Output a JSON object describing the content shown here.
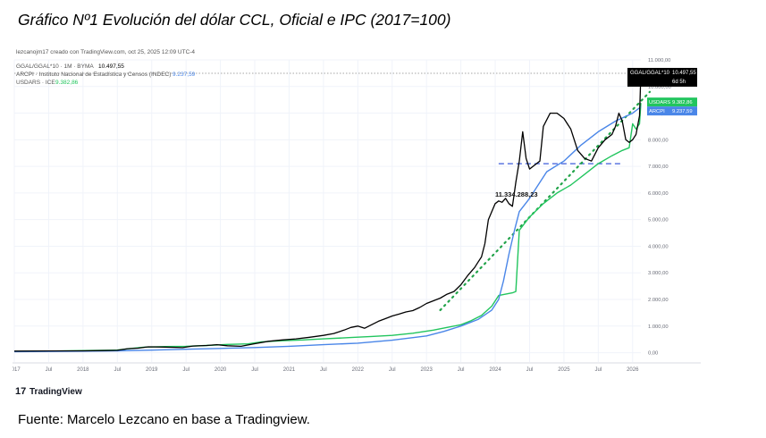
{
  "title": "Gráfico Nº1 Evolución del dólar CCL, Oficial e IPC (2017=100)",
  "caption": "Fuente: Marcelo Lezcano en base a Tradingview.",
  "panel": {
    "author_line": "lezcanojm17 creado con TradingView.com, oct 25, 2025 12:09 UTC-4",
    "brand": "TradingView",
    "brand_mark": "17"
  },
  "legend": [
    {
      "label": "GGAL/GGAL*10 · 1M · BYMA",
      "value": "10.497,55",
      "color": "#000000"
    },
    {
      "label": "ARCPI · Instituto Nacional de Estadística y Censos (INDEC)",
      "value": "9.237,59",
      "color": "#4a86e8"
    },
    {
      "label": "USDARS · ICE",
      "value": "9.382,86",
      "color": "#22c55e"
    }
  ],
  "price_labels": [
    {
      "name": "GGAL/GGAL*10",
      "value": "10.497,55",
      "sub": "6d 5h",
      "color": "#000000"
    },
    {
      "name": "USDARS",
      "value": "9.382,86",
      "color": "#22c55e"
    },
    {
      "name": "ARCPI",
      "value": "9.237,59",
      "color": "#4a86e8"
    }
  ],
  "annotation": "11.334.288,23",
  "chart_data": {
    "type": "line",
    "x_range": [
      2017.0,
      2026.12
    ],
    "ylim": [
      -350,
      11000
    ],
    "y_ticks": [
      0,
      1000,
      2000,
      3000,
      4000,
      5000,
      6000,
      7000,
      8000,
      9000,
      10000,
      11000
    ],
    "y_tick_labels": [
      "0,00",
      "1.000,00",
      "2.000,00",
      "3.000,00",
      "4.000,00",
      "5.000,00",
      "6.000,00",
      "7.000,00",
      "8.000,00",
      "9.000,00",
      "10.000,00",
      "11.000,00"
    ],
    "x_ticks": [
      {
        "x": 2017.0,
        "label": "2017"
      },
      {
        "x": 2017.5,
        "label": "Jul"
      },
      {
        "x": 2018.0,
        "label": "2018"
      },
      {
        "x": 2018.5,
        "label": "Jul"
      },
      {
        "x": 2019.0,
        "label": "2019"
      },
      {
        "x": 2019.5,
        "label": "Jul"
      },
      {
        "x": 2020.0,
        "label": "2020"
      },
      {
        "x": 2020.5,
        "label": "Jul"
      },
      {
        "x": 2021.0,
        "label": "2021"
      },
      {
        "x": 2021.5,
        "label": "Jul"
      },
      {
        "x": 2022.0,
        "label": "2022"
      },
      {
        "x": 2022.5,
        "label": "Jul"
      },
      {
        "x": 2023.0,
        "label": "2023"
      },
      {
        "x": 2023.5,
        "label": "Jul"
      },
      {
        "x": 2024.0,
        "label": "2024"
      },
      {
        "x": 2024.5,
        "label": "Jul"
      },
      {
        "x": 2025.0,
        "label": "2025"
      },
      {
        "x": 2025.5,
        "label": "Jul"
      },
      {
        "x": 2026.0,
        "label": "2026"
      }
    ],
    "series": [
      {
        "name": "GGAL/GGAL*10",
        "color": "#000000",
        "points": [
          [
            2017.0,
            60
          ],
          [
            2017.5,
            65
          ],
          [
            2018.0,
            70
          ],
          [
            2018.3,
            80
          ],
          [
            2018.5,
            90
          ],
          [
            2018.65,
            150
          ],
          [
            2018.8,
            170
          ],
          [
            2018.95,
            220
          ],
          [
            2019.2,
            210
          ],
          [
            2019.45,
            190
          ],
          [
            2019.6,
            250
          ],
          [
            2019.8,
            270
          ],
          [
            2019.95,
            300
          ],
          [
            2020.1,
            260
          ],
          [
            2020.3,
            240
          ],
          [
            2020.5,
            340
          ],
          [
            2020.7,
            430
          ],
          [
            2020.9,
            480
          ],
          [
            2021.1,
            520
          ],
          [
            2021.3,
            580
          ],
          [
            2021.5,
            650
          ],
          [
            2021.65,
            720
          ],
          [
            2021.8,
            850
          ],
          [
            2021.9,
            950
          ],
          [
            2022.0,
            1000
          ],
          [
            2022.1,
            920
          ],
          [
            2022.2,
            1050
          ],
          [
            2022.3,
            1180
          ],
          [
            2022.4,
            1280
          ],
          [
            2022.5,
            1380
          ],
          [
            2022.6,
            1450
          ],
          [
            2022.7,
            1530
          ],
          [
            2022.8,
            1580
          ],
          [
            2022.9,
            1700
          ],
          [
            2023.0,
            1850
          ],
          [
            2023.1,
            1950
          ],
          [
            2023.2,
            2050
          ],
          [
            2023.3,
            2200
          ],
          [
            2023.4,
            2300
          ],
          [
            2023.5,
            2550
          ],
          [
            2023.6,
            2900
          ],
          [
            2023.7,
            3200
          ],
          [
            2023.75,
            3400
          ],
          [
            2023.8,
            3600
          ],
          [
            2023.85,
            4100
          ],
          [
            2023.9,
            5000
          ],
          [
            2023.95,
            5300
          ],
          [
            2024.0,
            5600
          ],
          [
            2024.05,
            5700
          ],
          [
            2024.1,
            5650
          ],
          [
            2024.15,
            5800
          ],
          [
            2024.2,
            5600
          ],
          [
            2024.25,
            5500
          ],
          [
            2024.3,
            6400
          ],
          [
            2024.35,
            7200
          ],
          [
            2024.4,
            8300
          ],
          [
            2024.45,
            7300
          ],
          [
            2024.5,
            6900
          ],
          [
            2024.55,
            7000
          ],
          [
            2024.6,
            7100
          ],
          [
            2024.65,
            7200
          ],
          [
            2024.7,
            8500
          ],
          [
            2024.8,
            9000
          ],
          [
            2024.9,
            9000
          ],
          [
            2025.0,
            8800
          ],
          [
            2025.1,
            8400
          ],
          [
            2025.2,
            7600
          ],
          [
            2025.3,
            7300
          ],
          [
            2025.4,
            7200
          ],
          [
            2025.5,
            7700
          ],
          [
            2025.6,
            8000
          ],
          [
            2025.7,
            8200
          ],
          [
            2025.75,
            8500
          ],
          [
            2025.8,
            9000
          ],
          [
            2025.85,
            8700
          ],
          [
            2025.9,
            8000
          ],
          [
            2025.95,
            7900
          ],
          [
            2026.0,
            8000
          ],
          [
            2026.05,
            8200
          ],
          [
            2026.1,
            8900
          ],
          [
            2026.12,
            10497.55
          ]
        ]
      },
      {
        "name": "ARCPI",
        "color": "#4a86e8",
        "points": [
          [
            2017.0,
            40
          ],
          [
            2017.5,
            45
          ],
          [
            2018.0,
            55
          ],
          [
            2018.5,
            70
          ],
          [
            2019.0,
            95
          ],
          [
            2019.5,
            130
          ],
          [
            2020.0,
            160
          ],
          [
            2020.5,
            195
          ],
          [
            2021.0,
            240
          ],
          [
            2021.5,
            300
          ],
          [
            2022.0,
            360
          ],
          [
            2022.5,
            470
          ],
          [
            2023.0,
            630
          ],
          [
            2023.25,
            800
          ],
          [
            2023.5,
            1000
          ],
          [
            2023.75,
            1250
          ],
          [
            2023.95,
            1600
          ],
          [
            2024.05,
            2000
          ],
          [
            2024.12,
            2700
          ],
          [
            2024.2,
            3700
          ],
          [
            2024.28,
            4600
          ],
          [
            2024.35,
            5300
          ],
          [
            2024.5,
            5800
          ],
          [
            2024.6,
            6200
          ],
          [
            2024.75,
            6800
          ],
          [
            2025.0,
            7200
          ],
          [
            2025.25,
            7800
          ],
          [
            2025.5,
            8300
          ],
          [
            2025.75,
            8700
          ],
          [
            2026.0,
            9000
          ],
          [
            2026.12,
            9237.59
          ]
        ]
      },
      {
        "name": "USDARS",
        "color": "#22c55e",
        "points": [
          [
            2017.0,
            50
          ],
          [
            2017.5,
            60
          ],
          [
            2018.0,
            80
          ],
          [
            2018.5,
            100
          ],
          [
            2018.7,
            160
          ],
          [
            2018.9,
            210
          ],
          [
            2019.2,
            230
          ],
          [
            2019.5,
            240
          ],
          [
            2019.8,
            270
          ],
          [
            2020.1,
            310
          ],
          [
            2020.4,
            330
          ],
          [
            2020.6,
            410
          ],
          [
            2020.9,
            450
          ],
          [
            2021.2,
            480
          ],
          [
            2021.5,
            520
          ],
          [
            2021.9,
            570
          ],
          [
            2022.2,
            610
          ],
          [
            2022.5,
            650
          ],
          [
            2022.8,
            730
          ],
          [
            2023.1,
            850
          ],
          [
            2023.3,
            950
          ],
          [
            2023.5,
            1050
          ],
          [
            2023.65,
            1200
          ],
          [
            2023.8,
            1400
          ],
          [
            2023.95,
            1750
          ],
          [
            2024.05,
            2150
          ],
          [
            2024.15,
            2200
          ],
          [
            2024.25,
            2250
          ],
          [
            2024.3,
            2300
          ],
          [
            2024.35,
            4600
          ],
          [
            2024.5,
            5100
          ],
          [
            2024.7,
            5600
          ],
          [
            2024.9,
            6000
          ],
          [
            2025.1,
            6300
          ],
          [
            2025.3,
            6700
          ],
          [
            2025.5,
            7100
          ],
          [
            2025.7,
            7400
          ],
          [
            2025.85,
            7600
          ],
          [
            2025.95,
            7700
          ],
          [
            2026.0,
            8600
          ],
          [
            2026.05,
            8400
          ],
          [
            2026.1,
            8600
          ],
          [
            2026.12,
            9382.86
          ]
        ]
      }
    ],
    "trend_dotted": {
      "color": "#22a34a",
      "from": [
        2023.2,
        1600
      ],
      "to": [
        2026.25,
        9800
      ]
    },
    "level_dashed": {
      "color": "#3b5bdb",
      "value": 7100,
      "x_from": 2024.05,
      "x_to": 2025.85
    },
    "last_close_line": 10497.55,
    "grid": true,
    "legend_position": "top-left"
  }
}
